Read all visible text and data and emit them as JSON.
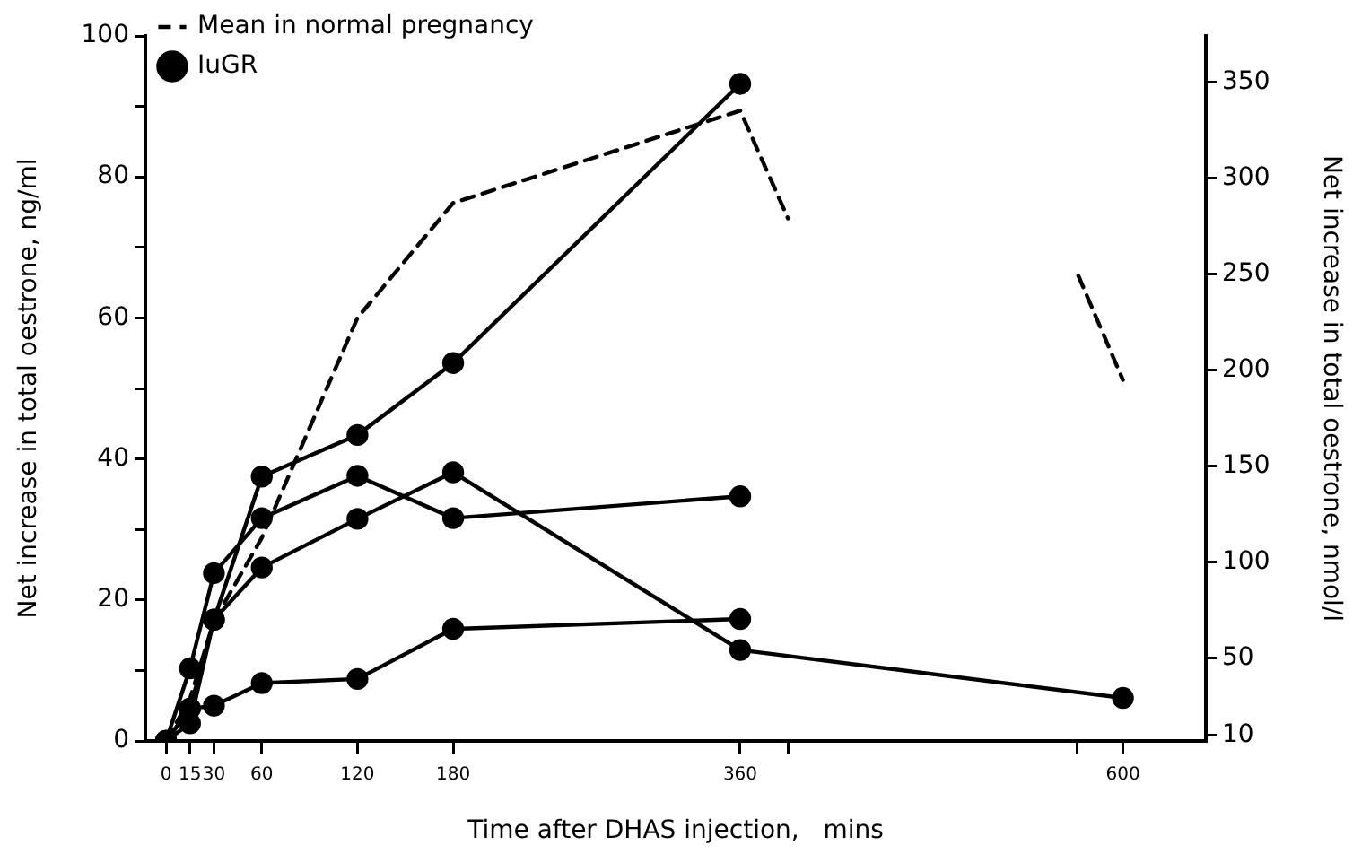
{
  "chart_data": {
    "type": "line",
    "xlabel": "Time after DHAS injection,   mins",
    "ylabel": "Net increase in total oestrone, ng/ml",
    "y2label": "Net increase in total oestrone, nmol/l",
    "xlim": [
      -13,
      652
    ],
    "xticks": [
      0,
      15,
      30,
      60,
      120,
      180,
      360,
      {
        "value": 390,
        "label": null
      },
      {
        "value": 571,
        "label": null
      },
      600
    ],
    "ylim": [
      0,
      100
    ],
    "yticks": [
      0,
      {
        "value": 10,
        "label": null
      },
      20,
      {
        "value": 30,
        "label": null
      },
      40,
      {
        "value": 50,
        "label": null
      },
      60,
      {
        "value": 70,
        "label": null
      },
      80,
      {
        "value": 90,
        "label": null
      },
      100
    ],
    "y2lim": [
      7,
      374
    ],
    "y2ticks": [
      10,
      50,
      100,
      150,
      200,
      250,
      300,
      350
    ],
    "grid": false,
    "legend": "top left",
    "series": [
      {
        "name": "Mean in normal pregnancy",
        "color": "#000000",
        "line_style": "dashed",
        "marker": "none",
        "x": [
          0,
          15,
          30,
          60,
          120,
          180,
          360,
          390,
          480,
          572,
          600
        ],
        "values": [
          0,
          6,
          17,
          28.8,
          60,
          76.3,
          89.4,
          74.1,
          null,
          66,
          51.2
        ]
      },
      {
        "name": "IuGR",
        "color": "#000000",
        "line_style": "solid",
        "marker": "circle",
        "x": [
          0,
          15,
          30,
          60,
          120,
          180,
          360
        ],
        "values": [
          0,
          2.5,
          17.2,
          37.5,
          43.4,
          53.6,
          93.2
        ]
      },
      {
        "color": "#000000",
        "line_style": "solid",
        "marker": "circle",
        "x": [
          0,
          15,
          30,
          60,
          120,
          180,
          360
        ],
        "values": [
          0,
          10.3,
          23.8,
          31.6,
          37.6,
          31.6,
          34.7
        ]
      },
      {
        "color": "#000000",
        "line_style": "solid",
        "marker": "circle",
        "x": [
          0,
          15,
          30,
          60,
          120,
          180,
          360,
          600
        ],
        "values": [
          0,
          4.6,
          17.2,
          24.6,
          31.5,
          38.1,
          12.9,
          6.1
        ]
      },
      {
        "color": "#000000",
        "line_style": "solid",
        "marker": "circle",
        "x": [
          0,
          15,
          30,
          60,
          120,
          180,
          360
        ],
        "values": [
          0,
          4.6,
          5.0,
          8.2,
          8.8,
          15.9,
          17.3
        ]
      }
    ]
  }
}
